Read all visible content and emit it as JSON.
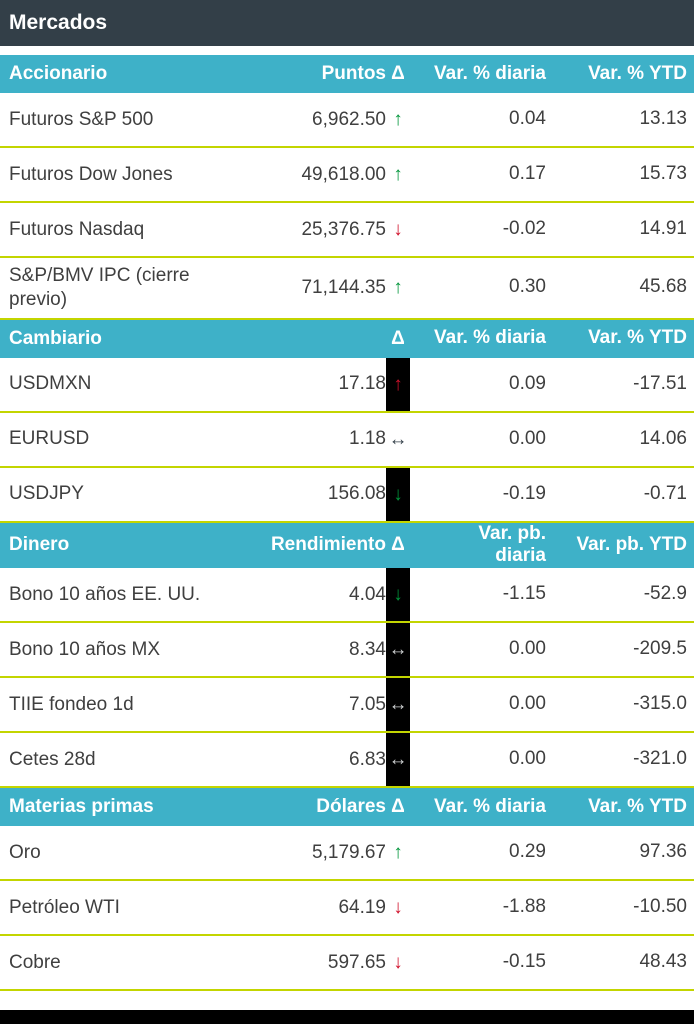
{
  "title": "Mercados",
  "colors": {
    "title_bar": "#333f48",
    "section_header": "#3eb1c8",
    "divider": "#c3d500",
    "text": "#3f3f3f",
    "green": "#00953a",
    "red": "#d0112b",
    "dark": "#333f48",
    "light": "#cfd2d3",
    "icon_box": "#000000"
  },
  "icons": {
    "up": "↑",
    "down": "↓",
    "flat": "↔"
  },
  "chart_data": {
    "type": "table",
    "title": "Mercados",
    "sections": [
      {
        "label_header": "Accionario",
        "value_header": "Puntos",
        "delta_header": "Δ",
        "diaria_header": "Var. % diaria",
        "ytd_header": "Var. % YTD",
        "rows": [
          {
            "label": "Futuros S&P 500",
            "value": "6,962.50",
            "trend": "up",
            "color": "green",
            "boxed": false,
            "diaria": "0.04",
            "ytd": "13.13"
          },
          {
            "label": "Futuros Dow Jones",
            "value": "49,618.00",
            "trend": "up",
            "color": "green",
            "boxed": false,
            "diaria": "0.17",
            "ytd": "15.73"
          },
          {
            "label": "Futuros Nasdaq",
            "value": "25,376.75",
            "trend": "down",
            "color": "red",
            "boxed": false,
            "diaria": "-0.02",
            "ytd": "14.91"
          },
          {
            "label": "S&P/BMV IPC (cierre previo)",
            "value": "71,144.35",
            "trend": "up",
            "color": "green",
            "boxed": false,
            "diaria": "0.30",
            "ytd": "45.68"
          }
        ]
      },
      {
        "label_header": "Cambiario",
        "value_header": "",
        "delta_header": "Δ",
        "diaria_header": "Var. % diaria",
        "ytd_header": "Var. % YTD",
        "rows": [
          {
            "label": "USDMXN",
            "value": "17.18",
            "trend": "up",
            "color": "red",
            "boxed": true,
            "diaria": "0.09",
            "ytd": "-17.51"
          },
          {
            "label": "EURUSD",
            "value": "1.18",
            "trend": "flat",
            "color": "dark",
            "boxed": false,
            "diaria": "0.00",
            "ytd": "14.06"
          },
          {
            "label": "USDJPY",
            "value": "156.08",
            "trend": "down",
            "color": "green",
            "boxed": true,
            "diaria": "-0.19",
            "ytd": "-0.71"
          }
        ]
      },
      {
        "label_header": "Dinero",
        "value_header": "Rendimiento",
        "delta_header": "Δ",
        "diaria_header": "Var. pb.\ndiaria",
        "ytd_header": "Var. pb. YTD",
        "rows": [
          {
            "label": "Bono 10 años EE. UU.",
            "value": "4.04",
            "trend": "down",
            "color": "green",
            "boxed": true,
            "diaria": "-1.15",
            "ytd": "-52.9"
          },
          {
            "label": "Bono 10 años MX",
            "value": "8.34",
            "trend": "flat",
            "color": "light",
            "boxed": true,
            "diaria": "0.00",
            "ytd": "-209.5"
          },
          {
            "label": "TIIE fondeo 1d",
            "value": "7.05",
            "trend": "flat",
            "color": "light",
            "boxed": true,
            "diaria": "0.00",
            "ytd": "-315.0"
          },
          {
            "label": "Cetes 28d",
            "value": "6.83",
            "trend": "flat",
            "color": "light",
            "boxed": true,
            "diaria": "0.00",
            "ytd": "-321.0"
          }
        ]
      },
      {
        "label_header": "Materias primas",
        "value_header": "Dólares",
        "delta_header": "Δ",
        "diaria_header": "Var. % diaria",
        "ytd_header": "Var. % YTD",
        "rows": [
          {
            "label": "Oro",
            "value": "5,179.67",
            "trend": "up",
            "color": "green",
            "boxed": false,
            "diaria": "0.29",
            "ytd": "97.36"
          },
          {
            "label": "Petróleo WTI",
            "value": "64.19",
            "trend": "down",
            "color": "red",
            "boxed": false,
            "diaria": "-1.88",
            "ytd": "-10.50"
          },
          {
            "label": "Cobre",
            "value": "597.65",
            "trend": "down",
            "color": "red",
            "boxed": false,
            "diaria": "-0.15",
            "ytd": "48.43"
          }
        ]
      }
    ]
  }
}
